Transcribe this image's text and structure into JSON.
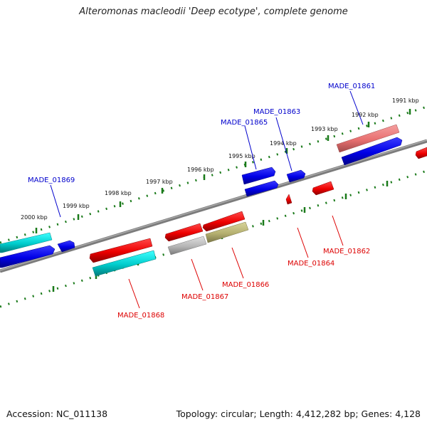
{
  "header": {
    "title": "Alteromonas macleodii 'Deep ecotype', complete genome"
  },
  "footer": {
    "accession": "Accession: NC_011138",
    "topology": "Topology: circular; Length: 4,412,282 bp; Genes: 4,128"
  },
  "ruler": {
    "labels": [
      "2000 kbp",
      "1999 kbp",
      "1998 kbp",
      "1997 kbp",
      "1996 kbp",
      "1995 kbp",
      "1994 kbp",
      "1993 kbp",
      "1992 kbp",
      "1991 kbp"
    ]
  },
  "genes": {
    "forward": [
      "MADE_01869",
      "MADE_01865",
      "MADE_01863",
      "MADE_01861"
    ],
    "reverse": [
      "MADE_01868",
      "MADE_01867",
      "MADE_01866",
      "MADE_01864",
      "MADE_01862"
    ]
  },
  "colors": {
    "forward_label": "#0000cc",
    "reverse_label": "#dd0000",
    "tick": "#1a7a1a",
    "backbone": "#808080",
    "blue_gene": "#0000ee",
    "red_gene": "#ee0000",
    "cyan_gene": "#00cccc",
    "pink_gene": "#e87070",
    "gray_gene": "#b5b5b5",
    "olive_gene": "#b5b070"
  }
}
